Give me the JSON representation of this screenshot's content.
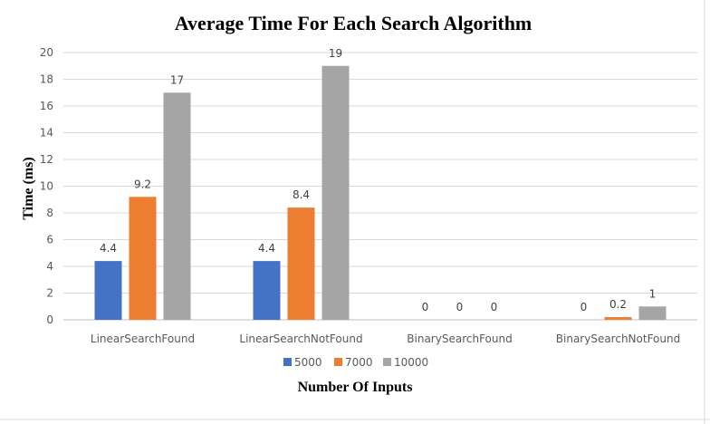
{
  "chart_data": {
    "type": "bar",
    "title": "Average Time For Each Search Algorithm",
    "xlabel": "Number Of Inputs",
    "ylabel": "Time (ms)",
    "ylim": [
      0,
      20
    ],
    "yticks": [
      "0",
      "2",
      "4",
      "6",
      "8",
      "10",
      "12",
      "14",
      "16",
      "18",
      "20"
    ],
    "grid": true,
    "legend_position": "bottom",
    "categories": [
      "LinearSearchFound",
      "LinearSearchNotFound",
      "BinarySearchFound",
      "BinarySearchNotFound"
    ],
    "series": [
      {
        "name": "5000",
        "color": "#4472C4",
        "values": [
          4.4,
          4.4,
          0,
          0
        ],
        "labels": [
          "4.4",
          "4.4",
          "0",
          "0"
        ]
      },
      {
        "name": "7000",
        "color": "#ED7D31",
        "values": [
          9.2,
          8.4,
          0,
          0.2
        ],
        "labels": [
          "9.2",
          "8.4",
          "0",
          "0.2"
        ]
      },
      {
        "name": "10000",
        "color": "#A5A5A5",
        "values": [
          17,
          19,
          0,
          1
        ],
        "labels": [
          "17",
          "19",
          "0",
          "1"
        ]
      }
    ]
  }
}
